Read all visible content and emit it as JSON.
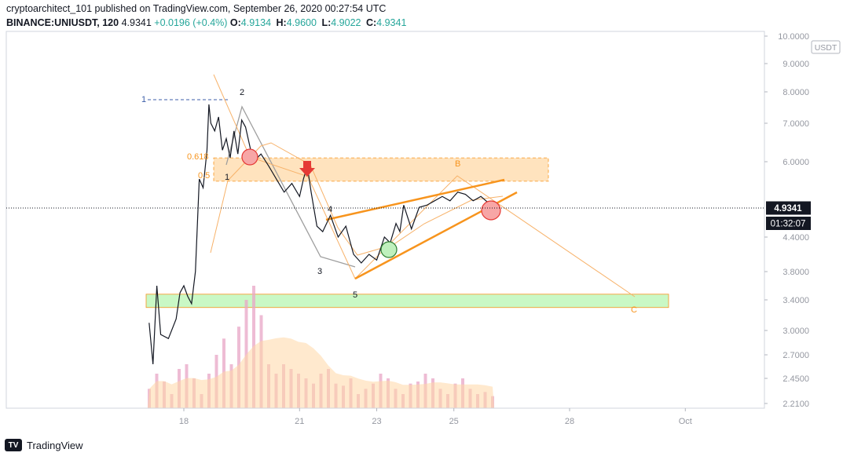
{
  "header": {
    "line1": "cryptoarchitect_101 published on TradingView.com, September 26, 2020 00:27:54 UTC",
    "symbol": "BINANCE:UNIUSDT, 120",
    "last": "4.9341",
    "change": "+0.0196 (+0.4%)",
    "o_label": "O:",
    "o": "4.9134",
    "h_label": "H:",
    "h": "4.9600",
    "l_label": "L:",
    "l": "4.9022",
    "c_label": "C:",
    "c": "4.9341"
  },
  "footer": {
    "brand": "TradingView"
  },
  "chart_data": {
    "type": "line",
    "currency_label": "USDT",
    "price_scale": [
      "10.0000",
      "9.0000",
      "8.0000",
      "7.0000",
      "6.0000",
      "4.9341",
      "4.4000",
      "3.8000",
      "3.4000",
      "3.0000",
      "2.7000",
      "2.4500",
      "2.2100"
    ],
    "price_ticks": [
      10.0,
      9.0,
      8.0,
      7.0,
      6.0,
      4.4,
      3.8,
      3.4,
      3.0,
      2.7,
      2.45,
      2.21
    ],
    "price_tick_labels": [
      "10.0000",
      "9.0000",
      "8.0000",
      "7.0000",
      "6.0000",
      "4.4000",
      "3.8000",
      "3.4000",
      "3.0000",
      "2.7000",
      "2.4500",
      "2.2100"
    ],
    "x_ticks": [
      "18",
      "21",
      "23",
      "25",
      "28",
      "Oct"
    ],
    "x_tick_dates": [
      18,
      21,
      23,
      25,
      28,
      31
    ],
    "last_price_label": "4.9341",
    "countdown_label": "01:32:07",
    "series": [
      {
        "x": [
          17.1,
          17.2,
          17.3,
          17.4,
          17.6,
          17.8,
          17.9,
          18.0,
          18.1,
          18.2,
          18.3,
          18.4,
          18.5,
          18.6,
          18.65,
          18.7,
          18.8,
          18.9,
          19.0,
          19.1,
          19.2,
          19.3,
          19.4,
          19.5,
          19.6,
          19.8,
          20.0,
          20.2,
          20.4,
          20.6,
          20.8,
          21.0,
          21.1,
          21.2,
          21.3,
          21.45,
          21.6,
          21.8,
          22.0,
          22.2,
          22.4,
          22.6,
          22.8,
          23.0,
          23.2,
          23.35,
          23.5,
          23.6,
          23.7,
          23.9,
          24.1,
          24.3,
          24.5,
          24.7,
          24.9,
          25.1,
          25.3,
          25.5,
          25.7,
          25.9,
          26.1
        ],
        "y": [
          3.1,
          2.6,
          3.6,
          2.95,
          2.9,
          3.15,
          3.5,
          3.6,
          3.45,
          3.35,
          3.8,
          5.6,
          5.4,
          6.3,
          7.6,
          7.0,
          6.8,
          7.2,
          6.3,
          6.6,
          6.1,
          6.8,
          6.2,
          7.1,
          6.9,
          6.0,
          6.2,
          5.9,
          5.6,
          5.3,
          5.5,
          5.2,
          5.6,
          5.9,
          5.3,
          4.6,
          4.5,
          4.8,
          4.4,
          4.6,
          4.1,
          3.95,
          4.1,
          4.0,
          4.4,
          4.3,
          4.65,
          4.5,
          5.0,
          4.55,
          4.95,
          5.0,
          5.1,
          5.2,
          5.1,
          5.3,
          5.25,
          5.1,
          5.2,
          5.05,
          4.9341
        ]
      }
    ],
    "volume": [
      2.35,
      2.5,
      2.42,
      2.3,
      2.55,
      2.6,
      2.45,
      2.3,
      2.5,
      2.7,
      2.9,
      2.6,
      3.05,
      3.4,
      3.6,
      3.2,
      2.6,
      2.5,
      2.6,
      2.55,
      2.5,
      2.45,
      2.4,
      2.5,
      2.55,
      2.4,
      2.38,
      2.45,
      2.3,
      2.35,
      2.4,
      2.5,
      2.45,
      2.35,
      2.3,
      2.4,
      2.42,
      2.5,
      2.45,
      2.35,
      2.3,
      2.4,
      2.45,
      2.35,
      2.3,
      2.32,
      2.28
    ],
    "annotations": [
      {
        "text": "1",
        "role": "fib-level"
      },
      {
        "text": "2",
        "role": "wave"
      },
      {
        "text": "0.618",
        "role": "fib-level"
      },
      {
        "text": "0.5",
        "role": "fib-level"
      },
      {
        "text": "1",
        "role": "wave"
      },
      {
        "text": "3",
        "role": "wave"
      },
      {
        "text": "4",
        "role": "wave"
      },
      {
        "text": "5",
        "role": "wave"
      },
      {
        "text": "B",
        "role": "wave"
      },
      {
        "text": "C",
        "role": "wave"
      }
    ],
    "zones": [
      {
        "name": "resistance",
        "from": 5.55,
        "to": 6.1,
        "color": "#ffd9a8"
      },
      {
        "name": "support",
        "from": 3.3,
        "to": 3.48,
        "color": "#b7f5b1"
      }
    ],
    "colors": {
      "price": "#131722",
      "orange": "#f7941d",
      "volume": "#e8a6c5",
      "volume_avg": "#ffd7a6",
      "up": "#26a69a"
    }
  }
}
